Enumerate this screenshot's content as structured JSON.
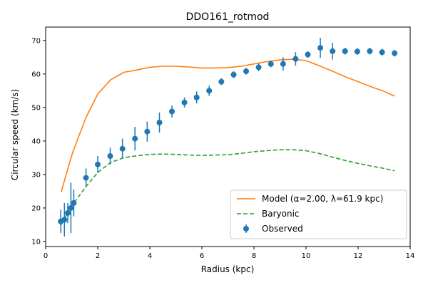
{
  "chart_data": {
    "type": "line",
    "title": "DDO161_rotmod",
    "xlabel": "Radius (kpc)",
    "ylabel": "Circular speed (km/s)",
    "xlim": [
      0,
      14
    ],
    "ylim": [
      8.5,
      74
    ],
    "xticks": [
      0,
      2,
      4,
      6,
      8,
      10,
      12,
      14
    ],
    "yticks": [
      10,
      20,
      30,
      40,
      50,
      60,
      70
    ],
    "legend_position": "lower-right",
    "grid": false,
    "series": [
      {
        "name": "Model (α=2.00, λ=61.9 kpc)",
        "style": "solid",
        "color": "#ff7f0e",
        "x": [
          0.6,
          0.75,
          0.9,
          1.05,
          1.3,
          1.55,
          2.0,
          2.5,
          3.0,
          3.5,
          4.0,
          4.5,
          5.0,
          5.5,
          6.0,
          6.5,
          7.0,
          7.5,
          8.0,
          8.5,
          9.0,
          9.5,
          10.0,
          10.5,
          11.0,
          11.5,
          12.0,
          12.5,
          13.0,
          13.4
        ],
        "y": [
          24.8,
          29.0,
          33.0,
          36.8,
          42.0,
          47.0,
          54.0,
          58.3,
          60.5,
          61.2,
          62.0,
          62.3,
          62.3,
          62.1,
          61.8,
          61.8,
          61.9,
          62.3,
          63.0,
          63.7,
          64.2,
          64.4,
          64.0,
          62.5,
          60.9,
          59.2,
          57.7,
          56.2,
          54.8,
          53.4
        ]
      },
      {
        "name": "Baryonic",
        "style": "dashed",
        "color": "#2ca02c",
        "x": [
          0.6,
          0.75,
          0.9,
          1.05,
          1.3,
          1.55,
          2.0,
          2.5,
          3.0,
          3.5,
          4.0,
          4.5,
          5.0,
          5.5,
          6.0,
          6.5,
          7.0,
          7.5,
          8.0,
          8.5,
          9.0,
          9.5,
          10.0,
          10.5,
          11.0,
          11.5,
          12.0,
          12.5,
          13.0,
          13.4
        ],
        "y": [
          15.0,
          17.2,
          19.4,
          21.2,
          23.8,
          26.4,
          30.6,
          33.6,
          35.0,
          35.6,
          36.0,
          36.1,
          36.0,
          35.8,
          35.7,
          35.8,
          35.9,
          36.3,
          36.8,
          37.1,
          37.4,
          37.4,
          37.1,
          36.3,
          35.2,
          34.2,
          33.3,
          32.5,
          31.8,
          31.1
        ]
      },
      {
        "name": "Observed",
        "style": "errorbar",
        "color": "#1f77b4",
        "x": [
          0.58,
          0.72,
          0.85,
          0.97,
          1.08,
          1.55,
          2.0,
          2.48,
          2.95,
          3.43,
          3.9,
          4.37,
          4.85,
          5.33,
          5.8,
          6.28,
          6.75,
          7.22,
          7.7,
          8.18,
          8.65,
          9.12,
          9.6,
          10.07,
          10.55,
          11.02,
          11.5,
          11.97,
          12.45,
          12.92,
          13.4
        ],
        "y": [
          16.0,
          16.5,
          18.5,
          20.0,
          21.5,
          29.0,
          33.0,
          35.5,
          37.7,
          40.7,
          42.8,
          45.5,
          48.8,
          51.5,
          53.0,
          55.0,
          57.7,
          59.8,
          60.8,
          62.0,
          63.0,
          63.0,
          64.5,
          65.8,
          67.8,
          66.8,
          66.8,
          66.7,
          66.8,
          66.5,
          66.2
        ],
        "err": [
          3.5,
          5.0,
          3.0,
          7.5,
          4.0,
          2.8,
          2.5,
          2.5,
          3.0,
          3.5,
          3.0,
          3.0,
          1.8,
          1.5,
          1.8,
          1.5,
          1.0,
          1.0,
          1.0,
          1.2,
          1.0,
          2.0,
          2.0,
          1.0,
          3.0,
          2.5,
          1.0,
          1.0,
          1.0,
          1.0,
          1.0
        ]
      }
    ]
  }
}
